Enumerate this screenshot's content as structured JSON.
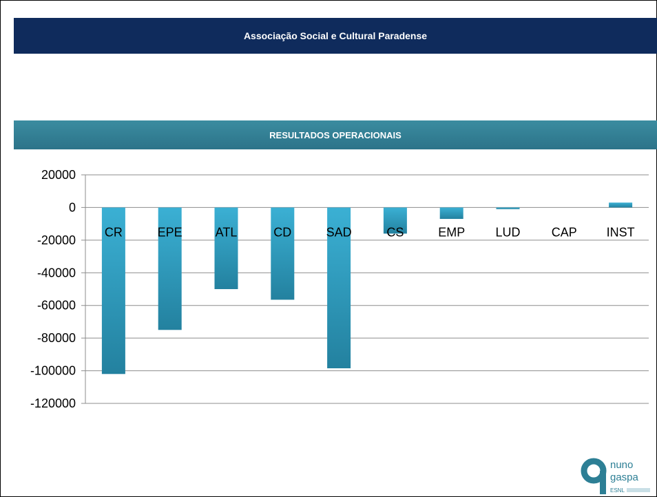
{
  "header": {
    "title": "Associação Social e Cultural Paradense"
  },
  "section": {
    "title": "RESULTADOS OPERACIONAIS"
  },
  "logo": {
    "line1": "nuno",
    "line2": "gaspa",
    "line3": "ESNL"
  },
  "colors": {
    "header": "#0f2b5c",
    "section": "#2c7389",
    "bar_top": "#3bb0d4",
    "bar_bottom": "#23819f",
    "grid": "#8c8c8c"
  },
  "chart_data": {
    "type": "bar",
    "categories": [
      "CR",
      "EPE",
      "ATL",
      "CD",
      "SAD",
      "CS",
      "EMP",
      "LUD",
      "CAP",
      "INST"
    ],
    "values": [
      -102000,
      -75000,
      -50000,
      -56500,
      -98500,
      -16000,
      -7000,
      -1000,
      0,
      3000
    ],
    "yticks": [
      20000,
      0,
      -20000,
      -40000,
      -60000,
      -80000,
      -100000,
      -120000
    ],
    "ylim": [
      -120000,
      20000
    ],
    "grid": true,
    "legend": "none"
  }
}
